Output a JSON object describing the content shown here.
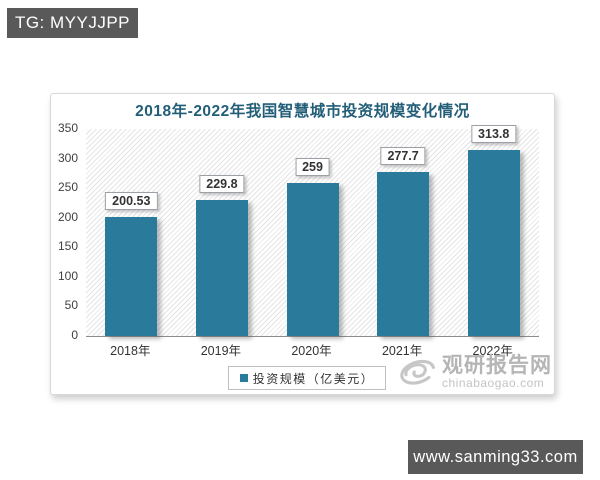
{
  "header_tag": {
    "label": "TG: MYYJJPP"
  },
  "footer": {
    "url": "www.sanming33.com"
  },
  "watermark": {
    "brand": "观研报告网",
    "domain": "chinabaogao.com",
    "logo": "swirl-logo"
  },
  "chart_data": {
    "type": "bar",
    "title": "2018年-2022年我国智慧城市投资规模变化情况",
    "categories": [
      "2018年",
      "2019年",
      "2020年",
      "2021年",
      "2022年"
    ],
    "values": [
      200.53,
      229.8,
      259,
      277.7,
      313.8
    ],
    "value_labels": [
      "200.53",
      "229.8",
      "259",
      "277.7",
      "313.8"
    ],
    "legend": [
      "投资规模（亿美元）"
    ],
    "legend_position": "bottom-center",
    "xlabel": "",
    "ylabel": "",
    "ylim": [
      0,
      350
    ],
    "yticks": [
      0,
      50,
      100,
      150,
      200,
      250,
      300,
      350
    ],
    "grid": false,
    "plot_background": "diagonal-hatch",
    "colors": {
      "bar": "#2a7a9c",
      "title": "#235e78",
      "axis_line": "#8c8c8c"
    }
  }
}
